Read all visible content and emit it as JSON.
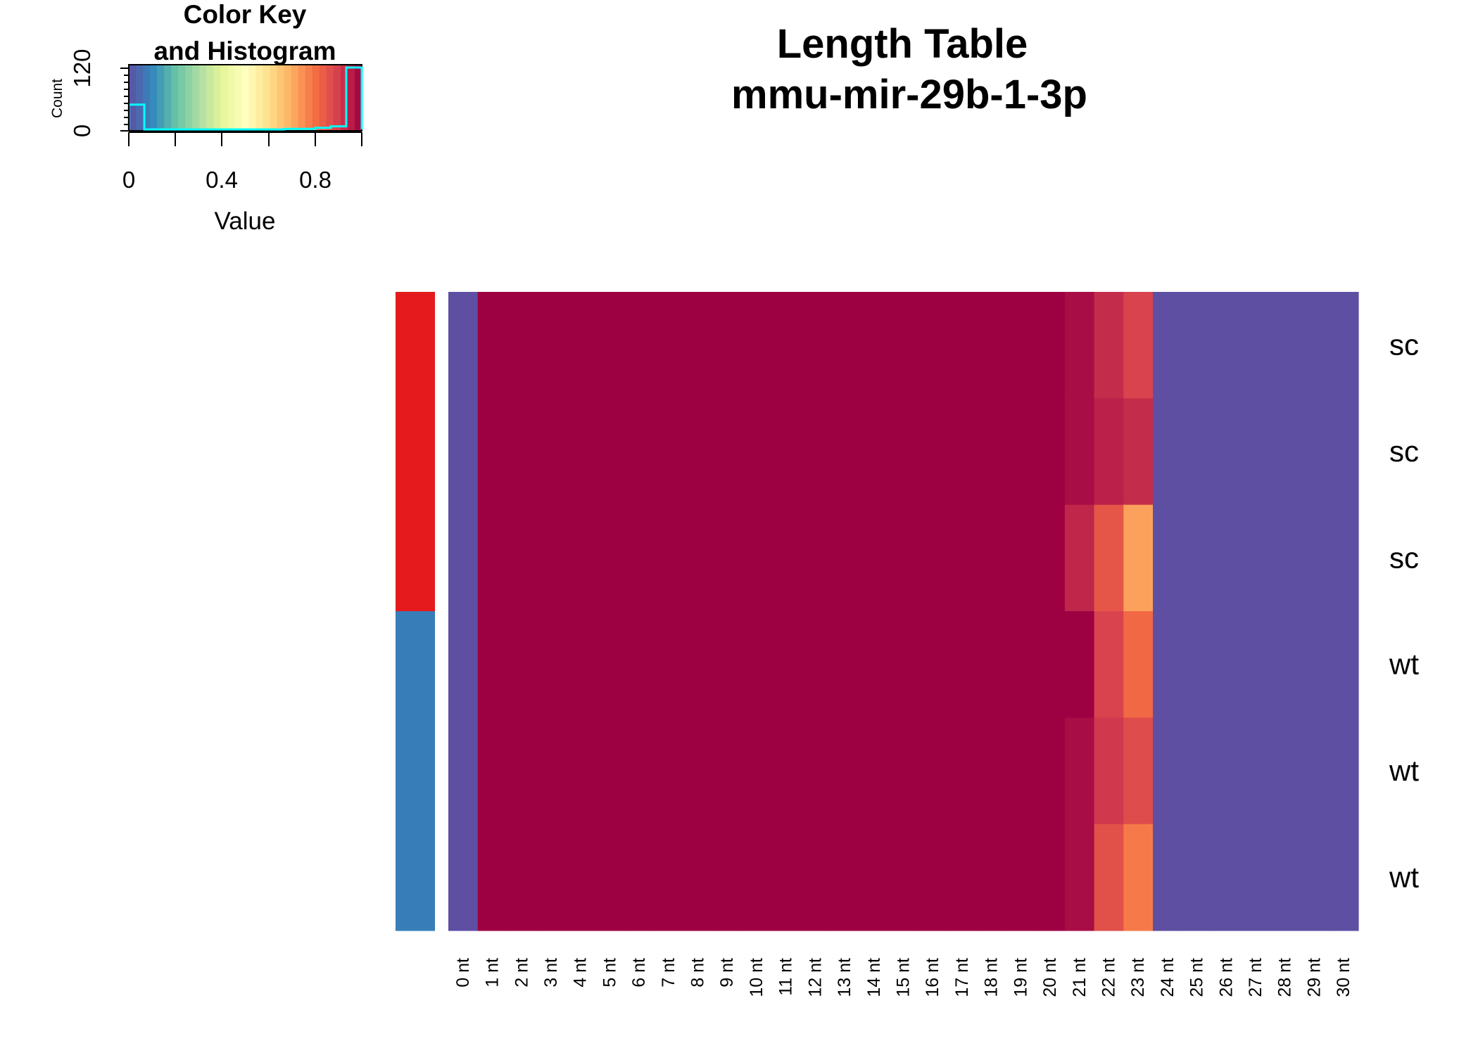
{
  "chart_data": {
    "type": "heatmap",
    "title": "Length Table",
    "subtitle": "mmu-mir-29b-1-3p",
    "color_key": {
      "title_line1": "Color Key",
      "title_line2": "and Histogram",
      "xlabel": "Value",
      "ylabel": "Count",
      "x_ticks": [
        "0",
        "0.4",
        "0.8"
      ],
      "y_ticks": [
        "0",
        "120"
      ],
      "palette": [
        "#5E4FA2",
        "#3288BD",
        "#66C2A5",
        "#ABDDA4",
        "#E6F598",
        "#FFFFBF",
        "#FEE08B",
        "#FDAE61",
        "#F46D43",
        "#D53E4F",
        "#9E0142"
      ],
      "histogram_color": "#00FFFF"
    },
    "columns": [
      "0 nt",
      "1 nt",
      "2 nt",
      "3 nt",
      "4 nt",
      "5 nt",
      "6 nt",
      "7 nt",
      "8 nt",
      "9 nt",
      "10 nt",
      "11 nt",
      "12 nt",
      "13 nt",
      "14 nt",
      "15 nt",
      "16 nt",
      "17 nt",
      "18 nt",
      "19 nt",
      "20 nt",
      "21 nt",
      "22 nt",
      "23 nt",
      "24 nt",
      "25 nt",
      "26 nt",
      "27 nt",
      "28 nt",
      "29 nt",
      "30 nt"
    ],
    "rows": [
      "sc",
      "sc",
      "sc",
      "wt",
      "wt",
      "wt"
    ],
    "row_side_colors": [
      "#E41A1C",
      "#E41A1C",
      "#E41A1C",
      "#377EB8",
      "#377EB8",
      "#377EB8"
    ],
    "values": [
      [
        0,
        1,
        1,
        1,
        1,
        1,
        1,
        1,
        1,
        1,
        1,
        1,
        1,
        1,
        1,
        1,
        1,
        1,
        1,
        1,
        1,
        0.98,
        0.93,
        0.89,
        0,
        0,
        0,
        0,
        0,
        0,
        0
      ],
      [
        0,
        1,
        1,
        1,
        1,
        1,
        1,
        1,
        1,
        1,
        1,
        1,
        1,
        1,
        1,
        1,
        1,
        1,
        1,
        1,
        1,
        0.98,
        0.95,
        0.93,
        0,
        0,
        0,
        0,
        0,
        0,
        0
      ],
      [
        0,
        1,
        1,
        1,
        1,
        1,
        1,
        1,
        1,
        1,
        1,
        1,
        1,
        1,
        1,
        1,
        1,
        1,
        1,
        1,
        1,
        0.94,
        0.85,
        0.72,
        0,
        0,
        0,
        0,
        0,
        0,
        0
      ],
      [
        0,
        1,
        1,
        1,
        1,
        1,
        1,
        1,
        1,
        1,
        1,
        1,
        1,
        1,
        1,
        1,
        1,
        1,
        1,
        1,
        1,
        1,
        0.89,
        0.81,
        0,
        0,
        0,
        0,
        0,
        0,
        0
      ],
      [
        0,
        1,
        1,
        1,
        1,
        1,
        1,
        1,
        1,
        1,
        1,
        1,
        1,
        1,
        1,
        1,
        1,
        1,
        1,
        1,
        1,
        0.98,
        0.91,
        0.87,
        0,
        0,
        0,
        0,
        0,
        0,
        0
      ],
      [
        0,
        1,
        1,
        1,
        1,
        1,
        1,
        1,
        1,
        1,
        1,
        1,
        1,
        1,
        1,
        1,
        1,
        1,
        1,
        1,
        1,
        0.98,
        0.86,
        0.78,
        0,
        0,
        0,
        0,
        0,
        0,
        0
      ]
    ],
    "value_range": [
      0,
      1
    ]
  }
}
